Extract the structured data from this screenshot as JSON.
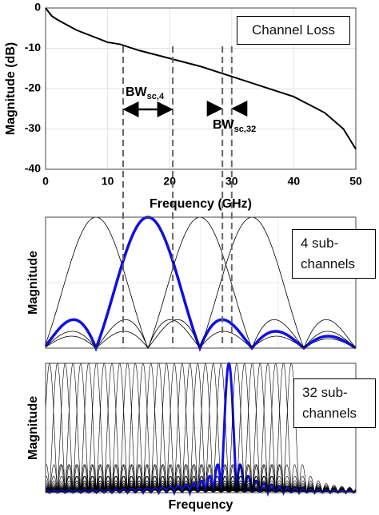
{
  "chart_data": {
    "type": "line",
    "title": "Channel Loss",
    "xlabel": "Frequency (GHz)",
    "ylabel": "Magnitude (dB)",
    "x": [
      0,
      1,
      2,
      5,
      10,
      12,
      15,
      20,
      25,
      28,
      30,
      35,
      40,
      45,
      48,
      50
    ],
    "values": [
      0,
      -2,
      -3,
      -5.5,
      -8.5,
      -9,
      -10.5,
      -12.5,
      -14.5,
      -16,
      -17,
      -19.5,
      -22,
      -26,
      -30,
      -35
    ],
    "color": "#000000",
    "xlim": [
      0,
      50
    ],
    "ylim": [
      -40,
      0
    ],
    "xticks": [
      0,
      10,
      20,
      30,
      40,
      50
    ],
    "yticks": [
      -40,
      -30,
      -20,
      -10,
      0
    ],
    "grid": true,
    "markers": [
      12.5,
      20.5,
      28.5,
      30
    ],
    "annotations": [
      {
        "text": "BW",
        "sub": "sc,4"
      },
      {
        "text": "BW",
        "sub": "sc,32"
      }
    ]
  },
  "panels": [
    {
      "label": "4 sub-channels",
      "ylabel": "Magnitude"
    },
    {
      "label": "32 sub-channels",
      "ylabel": "Magnitude",
      "xlabel": "Frequency"
    }
  ]
}
